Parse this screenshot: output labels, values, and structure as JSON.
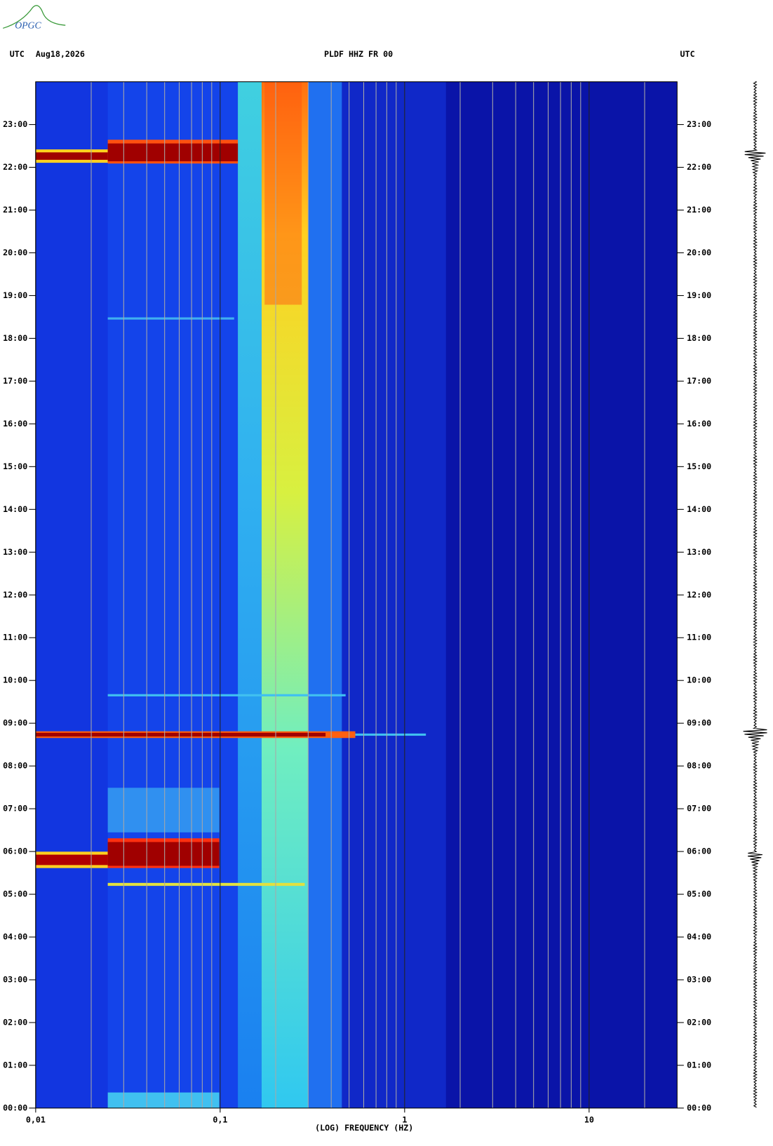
{
  "logo": "OPGC",
  "chart_data": {
    "type": "spectrogram",
    "title": "PLDF HHZ FR 00",
    "left_label": "UTC",
    "date": "Aug18,2026",
    "right_label": "UTC",
    "xlabel": "(LOG) FREQUENCY (HZ)",
    "xscale": "log",
    "xlim": [
      0.01,
      30
    ],
    "ylim": [
      0,
      24
    ],
    "xticks": [
      {
        "value": 0.01,
        "label": "0,01"
      },
      {
        "value": 0.1,
        "label": "0,1"
      },
      1,
      10
    ],
    "yticks": [
      {
        "value": 0,
        "label": "00:00"
      },
      {
        "value": 1,
        "label": "01:00"
      },
      {
        "value": 2,
        "label": "02:00"
      },
      {
        "value": 3,
        "label": "03:00"
      },
      {
        "value": 4,
        "label": "04:00"
      },
      {
        "value": 5,
        "label": "05:00"
      },
      {
        "value": 6,
        "label": "06:00"
      },
      {
        "value": 7,
        "label": "07:00"
      },
      {
        "value": 8,
        "label": "08:00"
      },
      {
        "value": 9,
        "label": "09:00"
      },
      {
        "value": 10,
        "label": "10:00"
      },
      {
        "value": 11,
        "label": "11:00"
      },
      {
        "value": 12,
        "label": "12:00"
      },
      {
        "value": 13,
        "label": "13:00"
      },
      {
        "value": 14,
        "label": "14:00"
      },
      {
        "value": 15,
        "label": "15:00"
      },
      {
        "value": 16,
        "label": "16:00"
      },
      {
        "value": 17,
        "label": "17:00"
      },
      {
        "value": 18,
        "label": "18:00"
      },
      {
        "value": 19,
        "label": "19:00"
      },
      {
        "value": 20,
        "label": "20:00"
      },
      {
        "value": 21,
        "label": "21:00"
      },
      {
        "value": 22,
        "label": "22:00"
      },
      {
        "value": 23,
        "label": "23:00"
      }
    ]
  }
}
